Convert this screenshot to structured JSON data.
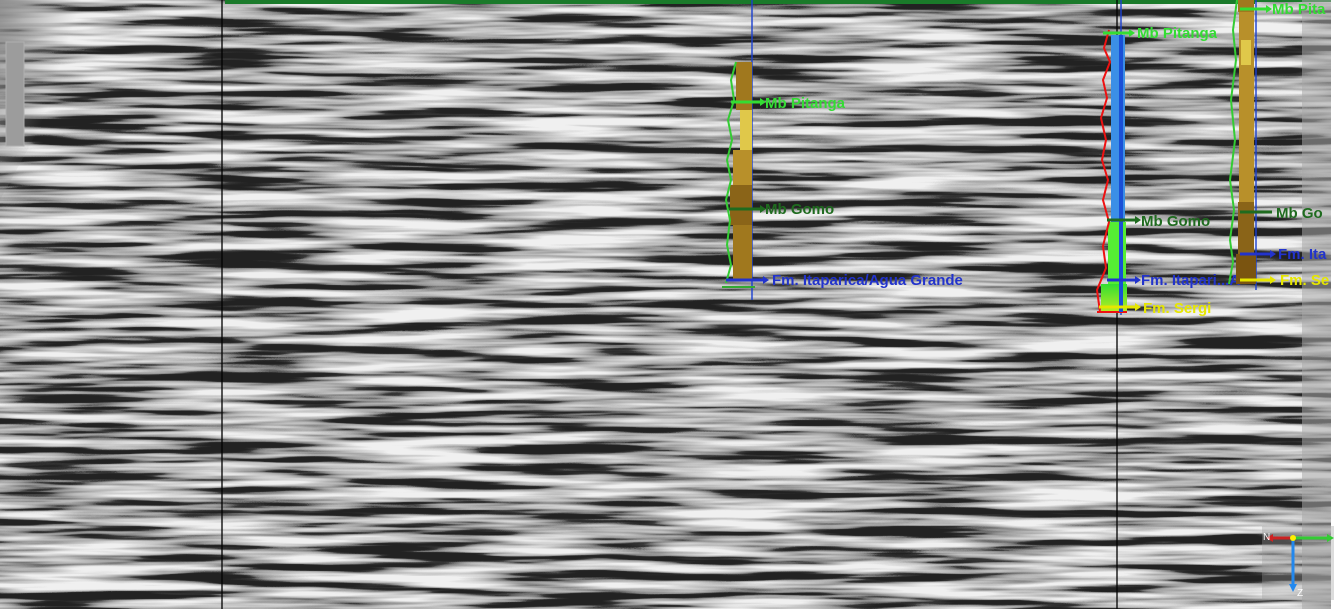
{
  "colors": {
    "background_gray": "#8e8e8e",
    "reflector_dark": "#2a2a2a",
    "reflector_light": "#e6e6e6",
    "section_line": "#000000",
    "top_border": "#1a7a2a",
    "marker_light_green": "#33dd33",
    "marker_dark_green": "#1f6b1f",
    "marker_blue": "#2233cc",
    "marker_yellow": "#e6e600",
    "log_brown": "#a0781e",
    "log_yellow": "#e0c84a",
    "log_red": "#ee1111",
    "log_blue_bar": "#1a4fd6",
    "log_green_fill": "#55ee33"
  },
  "wells": [
    {
      "id": "well-1",
      "markers": [
        {
          "label": "Mb Pitanga",
          "color": "light_green"
        },
        {
          "label": "Mb Gomo",
          "color": "dark_green"
        },
        {
          "label": "Fm. Itaparica/Agua Grande",
          "color": "blue"
        }
      ]
    },
    {
      "id": "well-2",
      "markers": [
        {
          "label": "Mb Pitanga",
          "color": "light_green"
        },
        {
          "label": "Mb Gomo",
          "color": "dark_green"
        },
        {
          "label": "Fm. Itapari...A",
          "color": "blue"
        },
        {
          "label": "Fm. Sergi",
          "color": "yellow"
        }
      ]
    },
    {
      "id": "well-3",
      "markers": [
        {
          "label": "Mb Pita",
          "color": "light_green"
        },
        {
          "label": "Mb Go",
          "color": "dark_green"
        },
        {
          "label": "Fm. Ita",
          "color": "blue"
        },
        {
          "label": "Fm. Se",
          "color": "yellow"
        }
      ]
    }
  ],
  "axis_triad": {
    "vertical_label": "Z",
    "horizontal_label": "N",
    "icon": "orientation-axes-icon"
  }
}
